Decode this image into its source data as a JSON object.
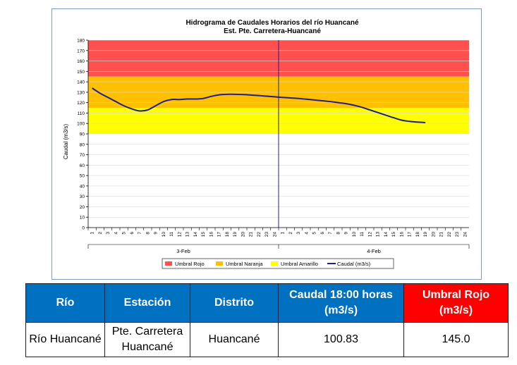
{
  "chart_data": {
    "type": "line",
    "title": "Hidrograma de Caudales Horarios del río Huancané",
    "subtitle": "Est. Pte. Carretera-Huancané",
    "ylabel": "Caudal  (m3/s)",
    "ylim": [
      0,
      180
    ],
    "yticks": [
      0,
      10,
      20,
      30,
      40,
      50,
      60,
      70,
      80,
      90,
      100,
      110,
      120,
      130,
      140,
      150,
      160,
      170,
      180
    ],
    "x_ticks_day1": [
      "1",
      "2",
      "3",
      "4",
      "5",
      "6",
      "7",
      "8",
      "9",
      "10",
      "11",
      "12",
      "13",
      "14",
      "15",
      "16",
      "17",
      "18",
      "19",
      "20",
      "21",
      "22",
      "23",
      "24"
    ],
    "x_ticks_day2": [
      "1",
      "2",
      "3",
      "4",
      "5",
      "6",
      "7",
      "8",
      "9",
      "10",
      "11",
      "12",
      "13",
      "14",
      "15",
      "16",
      "17",
      "18",
      "19",
      "20",
      "21",
      "22",
      "23",
      "24"
    ],
    "day_labels": [
      "3-Feb",
      "4-Feb"
    ],
    "bands": [
      {
        "name": "Umbral Rojo",
        "from": 145,
        "to": 180,
        "color": "#ff5050"
      },
      {
        "name": "Umbral Naranja",
        "from": 115,
        "to": 145,
        "color": "#ffc000"
      },
      {
        "name": "Umbral Amarillo",
        "from": 90,
        "to": 115,
        "color": "#ffff00"
      }
    ],
    "series": [
      {
        "name": "Caudal (m3/s)",
        "color": "#1f1f8f",
        "x": [
          1,
          2,
          3,
          4,
          5,
          6,
          7,
          8,
          9,
          10,
          11,
          12,
          13,
          14,
          15,
          16,
          17,
          18,
          19,
          20,
          21,
          22,
          23,
          24,
          25,
          26,
          27,
          28,
          29,
          30,
          31,
          32,
          33,
          34,
          35,
          36,
          37,
          38,
          39,
          40,
          41,
          42,
          43
        ],
        "values": [
          134,
          129,
          125,
          121,
          117,
          114,
          112,
          113,
          117,
          121,
          123,
          123,
          123.5,
          123.5,
          124,
          126,
          127.5,
          128,
          128,
          127.8,
          127.3,
          126.8,
          126.2,
          125.6,
          125,
          124.5,
          124,
          123.3,
          122.6,
          121.8,
          121,
          120,
          119,
          117.5,
          115.5,
          113,
          110.5,
          108,
          105.5,
          103.2,
          102,
          101.3,
          100.83
        ]
      }
    ],
    "grid": true,
    "legend_position": "bottom"
  },
  "table": {
    "headers": [
      "Río",
      "Estación",
      "Distrito",
      "Caudal  18:00 horas (m3/s)",
      "Umbral Rojo (m3/s)"
    ],
    "row": [
      "Río Huancané",
      "Pte. Carretera Huancané",
      "Huancané",
      "100.83",
      "145.0"
    ]
  }
}
